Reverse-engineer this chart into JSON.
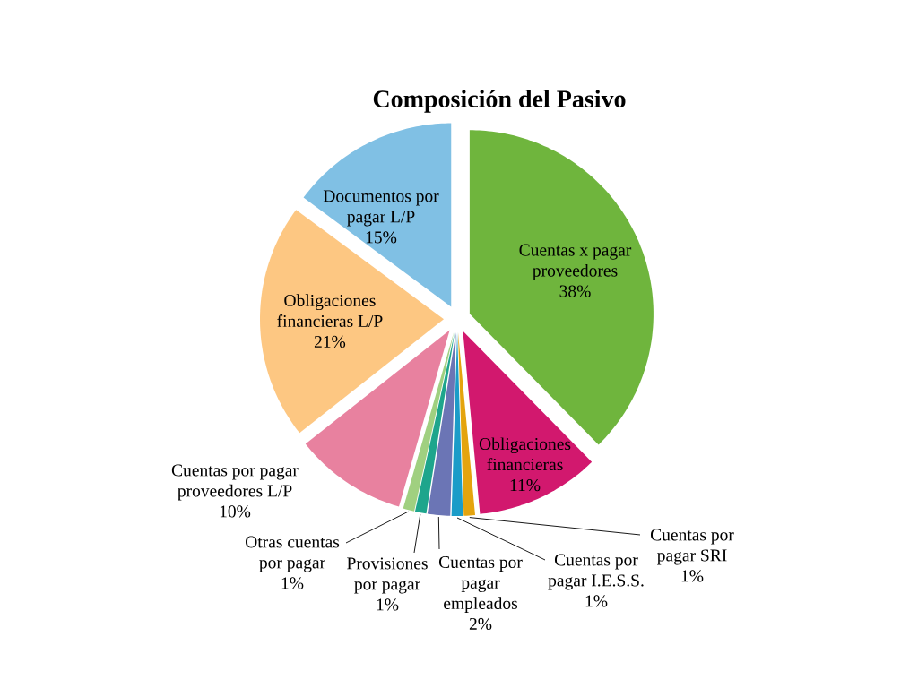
{
  "chart_data": {
    "type": "pie",
    "title": "Composición del Pasivo",
    "categories": [
      "Cuentas x pagar proveedores",
      "Obligaciones financieras",
      "Cuentas por pagar SRI",
      "Cuentas por pagar I.E.S.S.",
      "Cuentas por pagar empleados",
      "Provisiones por pagar",
      "Otras cuentas por pagar",
      "Cuentas por pagar proveedores L/P",
      "Obligaciones financieras L/P",
      "Documentos por pagar L/P"
    ],
    "values": [
      38,
      11,
      1,
      1,
      2,
      1,
      1,
      10,
      21,
      15
    ],
    "value_labels": [
      "38%",
      "11%",
      "1%",
      "1%",
      "2%",
      "1%",
      "1%",
      "10%",
      "21%",
      "15%"
    ],
    "colors": [
      "#6fb53d",
      "#d2186e",
      "#e4a40e",
      "#1b9cc8",
      "#6b75b5",
      "#1ea58c",
      "#a0d080",
      "#e8819f",
      "#fdc782",
      "#80c0e4"
    ]
  }
}
